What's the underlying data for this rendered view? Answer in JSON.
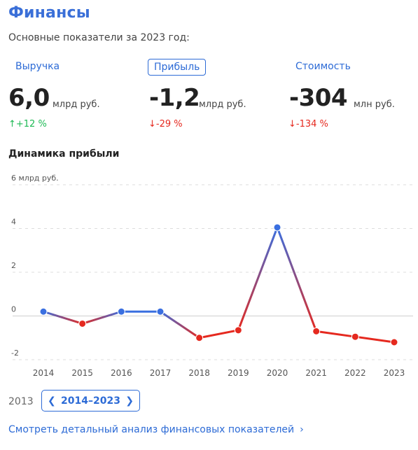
{
  "header": {
    "title": "Финансы",
    "subtitle": "Основные показатели за 2023 год:"
  },
  "metrics": [
    {
      "label": "Выручка",
      "value": "6,0",
      "unit": "млрд руб.",
      "change": "↑+12 %",
      "trend": "up",
      "active": false
    },
    {
      "label": "Прибыль",
      "value": "-1,2",
      "unit": "млрд руб.",
      "change": "↓-29 %",
      "trend": "down",
      "active": true
    },
    {
      "label": "Стоимость",
      "value": "-304",
      "unit": "млн руб.",
      "change": "↓-134 %",
      "trend": "down",
      "active": false
    }
  ],
  "colors": {
    "accent": "#2d6bd6",
    "positive": "#3a6fe0",
    "negative": "#e5291f",
    "up": "#1db954"
  },
  "chart_data": {
    "type": "line",
    "title": "Динамика прибыли",
    "ytick_labels": [
      "6 млрд руб.",
      "4",
      "2",
      "0",
      "-2"
    ],
    "yticks": [
      6,
      4,
      2,
      0,
      -2
    ],
    "ylim": [
      -2,
      6
    ],
    "grid": true,
    "x": [
      "2014",
      "2015",
      "2016",
      "2017",
      "2018",
      "2019",
      "2020",
      "2021",
      "2022",
      "2023"
    ],
    "series": [
      {
        "values": [
          0.2,
          -0.35,
          0.2,
          0.2,
          -1.0,
          -0.65,
          4.05,
          -0.7,
          -0.95,
          -1.2
        ]
      }
    ]
  },
  "pager": {
    "start_label": "2013",
    "range": "2014–2023",
    "prev_icon": "chevron-left-icon",
    "next_icon": "chevron-right-icon"
  },
  "footer": {
    "link": "Смотреть детальный анализ финансовых показателей",
    "link_icon": "chevron-right-icon"
  }
}
